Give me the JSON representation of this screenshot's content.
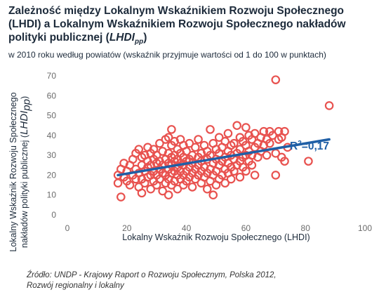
{
  "title": {
    "line1": "Zależność między Lokalnym Wskaźnikiem Rozwoju Społecznego",
    "line2": "(LHDI) a Lokalnym Wskaźnikiem Rozwoju Społecznego nakładów",
    "line3_text": "polityki publicznej (",
    "line3_abbr": "LHDI",
    "line3_sub": "pp",
    "line3_end": ")"
  },
  "subtitle": "w 2010 roku według powiatów (wskaźnik przyjmuje wartości od 1 do 100 w punktach)",
  "source": {
    "line1": "Źródło: UNDP - Krajowy Raport o Rozwoju Społecznym, Polska 2012,",
    "line2": "Rozwój regionalny i lokalny"
  },
  "annotation": {
    "r2_prefix": "R",
    "r2_sup": "2",
    "r2_value": "=0,17"
  },
  "colors": {
    "points": "#e8524f",
    "trend": "#1f5fa6",
    "text": "#1c2a3a"
  },
  "chart_data": {
    "type": "scatter",
    "xlabel": "Lokalny Wskaźnik Rozwoju Społecznego (LHDI)",
    "ylabel_line1": "Lokalny Wskaźnik Rozwoju Społecznego",
    "ylabel_line2": "nakładów polityki publicznej (",
    "ylabel_abbr": "LHDI",
    "ylabel_sub": "pp",
    "ylabel_end": ")",
    "xlim": [
      0,
      100
    ],
    "ylim": [
      0,
      70
    ],
    "xticks": [
      0,
      20,
      40,
      60,
      80,
      100
    ],
    "yticks": [
      0,
      10,
      20,
      30,
      40,
      50,
      60,
      70
    ],
    "grid": false,
    "trendline": {
      "x": [
        17,
        88
      ],
      "y": [
        20,
        38
      ],
      "r2": 0.17
    },
    "points": [
      [
        17,
        16
      ],
      [
        17,
        20
      ],
      [
        18,
        23
      ],
      [
        18,
        9
      ],
      [
        19,
        26
      ],
      [
        19,
        19
      ],
      [
        20,
        17
      ],
      [
        20,
        22
      ],
      [
        21,
        15
      ],
      [
        21,
        25
      ],
      [
        22,
        20
      ],
      [
        22,
        28
      ],
      [
        23,
        18
      ],
      [
        23,
        23
      ],
      [
        23,
        31
      ],
      [
        24,
        14
      ],
      [
        24,
        21
      ],
      [
        24,
        33
      ],
      [
        25,
        11
      ],
      [
        25,
        18
      ],
      [
        25,
        25
      ],
      [
        25,
        29
      ],
      [
        26,
        16
      ],
      [
        26,
        22
      ],
      [
        26,
        30
      ],
      [
        27,
        19
      ],
      [
        27,
        24
      ],
      [
        27,
        27
      ],
      [
        27,
        34
      ],
      [
        28,
        13
      ],
      [
        28,
        20
      ],
      [
        28,
        25
      ],
      [
        28,
        31
      ],
      [
        29,
        17
      ],
      [
        29,
        22
      ],
      [
        29,
        28
      ],
      [
        29,
        33
      ],
      [
        30,
        15
      ],
      [
        30,
        20
      ],
      [
        30,
        26
      ],
      [
        30,
        30
      ],
      [
        31,
        18
      ],
      [
        31,
        23
      ],
      [
        31,
        27
      ],
      [
        31,
        36
      ],
      [
        32,
        12
      ],
      [
        32,
        21
      ],
      [
        32,
        25
      ],
      [
        32,
        32
      ],
      [
        33,
        16
      ],
      [
        33,
        20
      ],
      [
        33,
        28
      ],
      [
        33,
        38
      ],
      [
        34,
        10
      ],
      [
        34,
        18
      ],
      [
        34,
        23
      ],
      [
        34,
        26
      ],
      [
        34,
        31
      ],
      [
        34,
        39
      ],
      [
        35,
        15
      ],
      [
        35,
        21
      ],
      [
        35,
        25
      ],
      [
        35,
        29
      ],
      [
        35,
        35
      ],
      [
        35,
        43
      ],
      [
        36,
        17
      ],
      [
        36,
        22
      ],
      [
        36,
        27
      ],
      [
        36,
        30
      ],
      [
        36,
        37
      ],
      [
        37,
        13
      ],
      [
        37,
        20
      ],
      [
        37,
        24
      ],
      [
        37,
        28
      ],
      [
        37,
        33
      ],
      [
        38,
        18
      ],
      [
        38,
        22
      ],
      [
        38,
        26
      ],
      [
        38,
        31
      ],
      [
        38,
        38
      ],
      [
        39,
        15
      ],
      [
        39,
        20
      ],
      [
        39,
        25
      ],
      [
        39,
        29
      ],
      [
        39,
        35
      ],
      [
        40,
        17
      ],
      [
        40,
        22
      ],
      [
        40,
        27
      ],
      [
        40,
        32
      ],
      [
        41,
        19
      ],
      [
        41,
        24
      ],
      [
        41,
        28
      ],
      [
        41,
        36
      ],
      [
        42,
        14
      ],
      [
        42,
        21
      ],
      [
        42,
        26
      ],
      [
        42,
        30
      ],
      [
        43,
        18
      ],
      [
        43,
        23
      ],
      [
        43,
        34
      ],
      [
        44,
        20
      ],
      [
        44,
        25
      ],
      [
        44,
        29
      ],
      [
        44,
        38
      ],
      [
        45,
        16
      ],
      [
        45,
        22
      ],
      [
        45,
        27
      ],
      [
        45,
        31
      ],
      [
        46,
        19
      ],
      [
        46,
        24
      ],
      [
        46,
        35
      ],
      [
        47,
        13
      ],
      [
        47,
        21
      ],
      [
        47,
        28
      ],
      [
        47,
        32
      ],
      [
        48,
        17
      ],
      [
        48,
        23
      ],
      [
        48,
        30
      ],
      [
        48,
        43
      ],
      [
        49,
        10
      ],
      [
        49,
        20
      ],
      [
        49,
        26
      ],
      [
        49,
        36
      ],
      [
        50,
        15
      ],
      [
        50,
        22
      ],
      [
        50,
        28
      ],
      [
        50,
        33
      ],
      [
        51,
        18
      ],
      [
        51,
        25
      ],
      [
        51,
        31
      ],
      [
        51,
        39
      ],
      [
        52,
        20
      ],
      [
        52,
        27
      ],
      [
        52,
        34
      ],
      [
        53,
        16
      ],
      [
        53,
        23
      ],
      [
        53,
        29
      ],
      [
        53,
        37
      ],
      [
        54,
        21
      ],
      [
        54,
        26
      ],
      [
        54,
        32
      ],
      [
        54,
        41
      ],
      [
        55,
        18
      ],
      [
        55,
        24
      ],
      [
        55,
        30
      ],
      [
        55,
        35
      ],
      [
        56,
        22
      ],
      [
        56,
        28
      ],
      [
        56,
        36
      ],
      [
        57,
        25
      ],
      [
        57,
        31
      ],
      [
        57,
        45
      ],
      [
        58,
        19
      ],
      [
        58,
        27
      ],
      [
        58,
        33
      ],
      [
        58,
        39
      ],
      [
        59,
        24
      ],
      [
        59,
        29
      ],
      [
        59,
        37
      ],
      [
        60,
        22
      ],
      [
        60,
        30
      ],
      [
        60,
        35
      ],
      [
        60,
        44
      ],
      [
        61,
        27
      ],
      [
        61,
        32
      ],
      [
        61,
        40
      ],
      [
        62,
        25
      ],
      [
        62,
        30
      ],
      [
        62,
        38
      ],
      [
        63,
        20
      ],
      [
        63,
        34
      ],
      [
        63,
        41
      ],
      [
        64,
        29
      ],
      [
        64,
        36
      ],
      [
        65,
        32
      ],
      [
        65,
        39
      ],
      [
        66,
        35
      ],
      [
        66,
        42
      ],
      [
        67,
        30
      ],
      [
        67,
        38
      ],
      [
        68,
        36
      ],
      [
        68,
        42
      ],
      [
        69,
        40
      ],
      [
        70,
        20
      ],
      [
        70,
        31
      ],
      [
        71,
        42
      ],
      [
        71,
        38
      ],
      [
        72,
        39
      ],
      [
        72,
        29
      ],
      [
        73,
        27
      ],
      [
        73,
        42
      ],
      [
        74,
        34
      ],
      [
        70,
        68
      ],
      [
        81,
        27
      ],
      [
        88,
        55
      ]
    ]
  }
}
